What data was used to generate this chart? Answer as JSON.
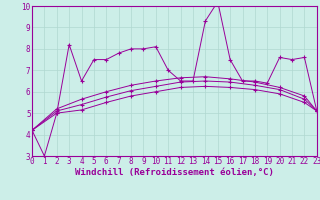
{
  "xlabel": "Windchill (Refroidissement éolien,°C)",
  "bg_color": "#cceee8",
  "line_color": "#990099",
  "series1": [
    [
      0,
      4.2
    ],
    [
      1,
      3.0
    ],
    [
      2,
      5.0
    ],
    [
      3,
      8.2
    ],
    [
      4,
      6.5
    ],
    [
      5,
      7.5
    ],
    [
      6,
      7.5
    ],
    [
      7,
      7.8
    ],
    [
      8,
      8.0
    ],
    [
      9,
      8.0
    ],
    [
      10,
      8.1
    ],
    [
      11,
      7.0
    ],
    [
      12,
      6.5
    ],
    [
      13,
      6.5
    ],
    [
      14,
      9.3
    ],
    [
      15,
      10.2
    ],
    [
      16,
      7.5
    ],
    [
      17,
      6.5
    ],
    [
      18,
      6.5
    ],
    [
      19,
      6.4
    ],
    [
      20,
      7.6
    ],
    [
      21,
      7.5
    ],
    [
      22,
      7.6
    ],
    [
      23,
      5.1
    ]
  ],
  "series2": [
    [
      0,
      4.2
    ],
    [
      2,
      5.0
    ],
    [
      4,
      5.15
    ],
    [
      6,
      5.5
    ],
    [
      8,
      5.8
    ],
    [
      10,
      6.0
    ],
    [
      12,
      6.2
    ],
    [
      14,
      6.25
    ],
    [
      16,
      6.2
    ],
    [
      18,
      6.1
    ],
    [
      20,
      5.9
    ],
    [
      22,
      5.5
    ],
    [
      23,
      5.1
    ]
  ],
  "series3": [
    [
      0,
      4.2
    ],
    [
      2,
      5.1
    ],
    [
      4,
      5.4
    ],
    [
      6,
      5.75
    ],
    [
      8,
      6.05
    ],
    [
      10,
      6.25
    ],
    [
      12,
      6.45
    ],
    [
      14,
      6.5
    ],
    [
      16,
      6.45
    ],
    [
      18,
      6.3
    ],
    [
      20,
      6.1
    ],
    [
      22,
      5.65
    ],
    [
      23,
      5.1
    ]
  ],
  "series4": [
    [
      0,
      4.2
    ],
    [
      2,
      5.2
    ],
    [
      4,
      5.65
    ],
    [
      6,
      6.0
    ],
    [
      8,
      6.3
    ],
    [
      10,
      6.5
    ],
    [
      12,
      6.65
    ],
    [
      14,
      6.7
    ],
    [
      16,
      6.6
    ],
    [
      18,
      6.45
    ],
    [
      20,
      6.2
    ],
    [
      22,
      5.8
    ],
    [
      23,
      5.1
    ]
  ],
  "xlim": [
    0,
    23
  ],
  "ylim": [
    3,
    10
  ],
  "xticks": [
    0,
    1,
    2,
    3,
    4,
    5,
    6,
    7,
    8,
    9,
    10,
    11,
    12,
    13,
    14,
    15,
    16,
    17,
    18,
    19,
    20,
    21,
    22,
    23
  ],
  "yticks": [
    3,
    4,
    5,
    6,
    7,
    8,
    9,
    10
  ],
  "grid_color": "#b0d8d0",
  "xlabel_fontsize": 6.5,
  "tick_fontsize": 5.5
}
